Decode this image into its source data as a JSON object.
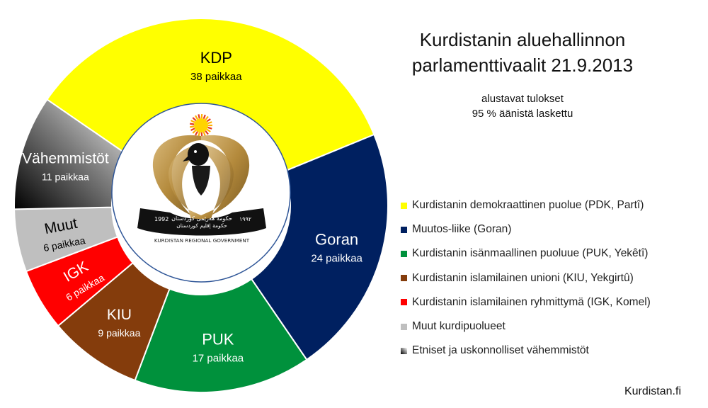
{
  "title_line1": "Kurdistanin aluehallinnon",
  "title_line2": "parlamenttivaalit 21.9.2013",
  "subtitle_line1": "alustavat tulokset",
  "subtitle_line2": "95 % äänistä laskettu",
  "source": "Kurdistan.fi",
  "emblem": {
    "text_top": "حكومة هەرێمی كوردستان",
    "text_mid": "حكومة إقليم كوردستان",
    "text_bottom": "KURDISTAN REGIONAL GOVERNMENT",
    "year_left": "1992",
    "year_right": "١٩٩٢"
  },
  "legend": [
    {
      "label": "Kurdistanin demokraattinen puolue (PDK, Partî)",
      "color": "#ffff00"
    },
    {
      "label": "Muutos-liike (Goran)",
      "color": "#002060"
    },
    {
      "label": "Kurdistanin isänmaallinen puoluue (PUK, Yekêtî)",
      "color": "#00913c"
    },
    {
      "label": "Kurdistanin islamilainen unioni (KIU, Yekgirtû)",
      "color": "#843c0c"
    },
    {
      "label": "Kurdistanin islamilainen ryhmittymä (IGK, Komel)",
      "color": "#ff0000"
    },
    {
      "label": "Muut kurdipuolueet",
      "color": "#bfbfbf"
    },
    {
      "label": "Etniset ja uskonnolliset vähemmistöt",
      "color": "gradient-black-white"
    }
  ],
  "chart_data": {
    "type": "pie",
    "variant": "donut",
    "unit": "paikkaa",
    "slices": [
      {
        "name": "KDP",
        "value": 38,
        "label": "38 paikkaa",
        "color": "#ffff00",
        "text_color": "#000000"
      },
      {
        "name": "Goran",
        "value": 24,
        "label": "24 paikkaa",
        "color": "#002060",
        "text_color": "#ffffff"
      },
      {
        "name": "PUK",
        "value": 17,
        "label": "17 paikkaa",
        "color": "#00913c",
        "text_color": "#ffffff"
      },
      {
        "name": "KIU",
        "value": 9,
        "label": "9 paikkaa",
        "color": "#843c0c",
        "text_color": "#ffffff"
      },
      {
        "name": "IGK",
        "value": 6,
        "label": "6 paikkaa",
        "color": "#ff0000",
        "text_color": "#ffffff"
      },
      {
        "name": "Muut",
        "value": 6,
        "label": "6 paikkaa",
        "color": "#bfbfbf",
        "text_color": "#000000"
      },
      {
        "name": "Vähemmistöt",
        "value": 11,
        "label": "11 paikkaa",
        "color": "gradient-black-white",
        "text_color": "#ffffff"
      }
    ]
  }
}
